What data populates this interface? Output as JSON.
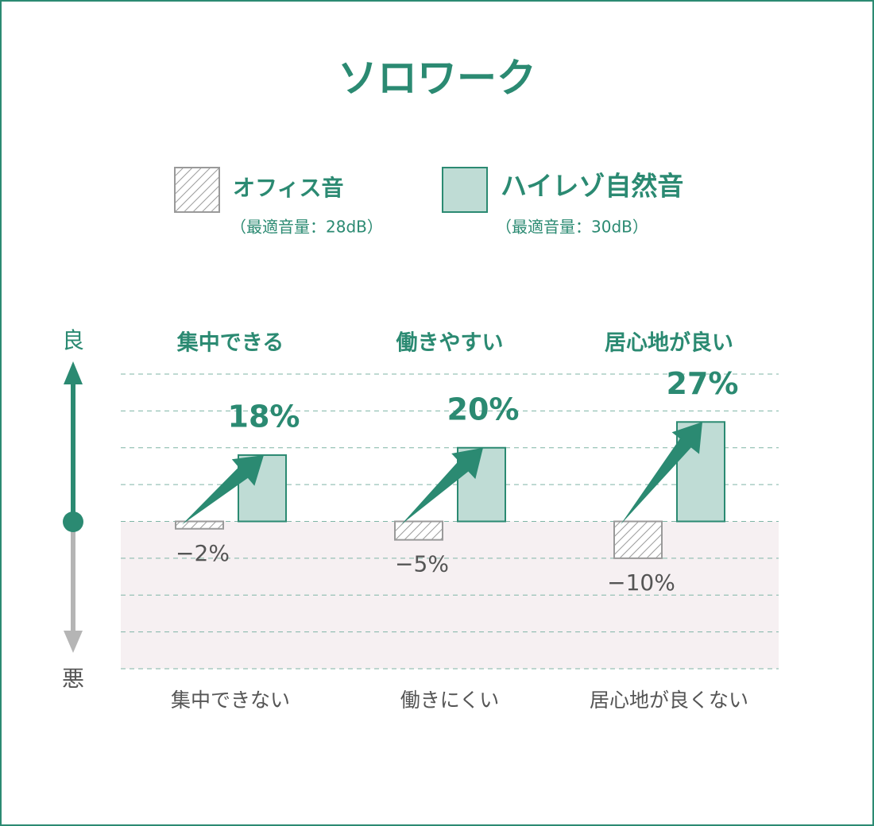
{
  "chart_data": {
    "type": "bar",
    "title": "ソロワーク",
    "categories": [
      "集中できる",
      "働きやすい",
      "居心地が良い"
    ],
    "negative_categories": [
      "集中できない",
      "働きにくい",
      "居心地が良くない"
    ],
    "good_label": "良",
    "bad_label": "悪",
    "series": [
      {
        "name": "オフィス音",
        "note": "（最適音量：28dB）",
        "color": "#9a9a9a",
        "values": [
          -2,
          -5,
          -10
        ],
        "value_labels": [
          "−2%",
          "−5%",
          "−10%"
        ]
      },
      {
        "name": "ハイレゾ自然音",
        "note": "（最適音量：30dB）",
        "color": "#2b8a72",
        "values": [
          18,
          20,
          27
        ],
        "value_labels": [
          "18%",
          "20%",
          "27%"
        ]
      }
    ],
    "ylim": [
      -40,
      40
    ],
    "yticks": [
      -40,
      -30,
      -20,
      -10,
      0,
      10,
      20,
      30,
      40
    ],
    "grid": true
  }
}
